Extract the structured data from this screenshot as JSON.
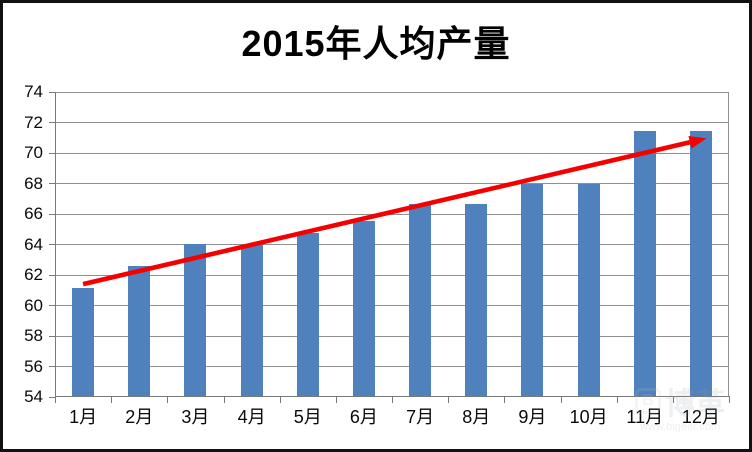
{
  "chart_data": {
    "type": "bar",
    "title": "2015年人均产量",
    "categories": [
      "1月",
      "2月",
      "3月",
      "4月",
      "5月",
      "6月",
      "7月",
      "8月",
      "9月",
      "10月",
      "11月",
      "12月"
    ],
    "values": [
      61.1,
      62.5,
      64.0,
      63.9,
      64.7,
      65.5,
      66.6,
      66.6,
      67.9,
      67.9,
      71.4,
      71.4
    ],
    "xlabel": "",
    "ylabel": "",
    "ylim": [
      54,
      74
    ],
    "y_ticks": [
      54,
      56,
      58,
      60,
      62,
      64,
      66,
      68,
      70,
      72,
      74
    ],
    "grid": true,
    "legend": "none",
    "annotations": [
      {
        "type": "arrow",
        "from": {
          "month": "1月",
          "value": 61.4
        },
        "to": {
          "month": "12月",
          "value": 70.9
        },
        "color": "#f40000"
      }
    ]
  },
  "colors": {
    "bar": "#4f81bd",
    "arrow": "#f40000",
    "gridline": "#8f8f8f",
    "axis": "#7a7a7a",
    "text": "#000000",
    "frame_border": "#111111"
  },
  "watermark": {
    "brand": "博革",
    "url": "www.bigeer.com"
  }
}
